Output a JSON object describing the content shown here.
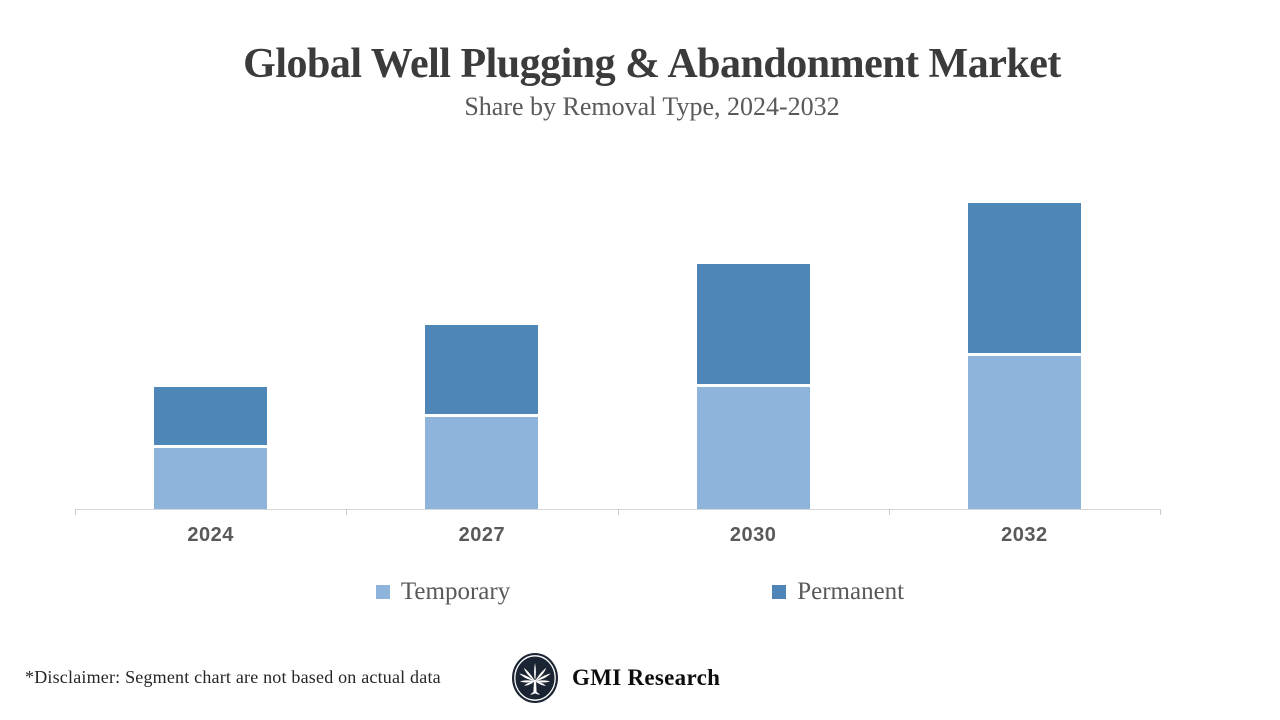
{
  "header": {
    "title": "Global Well Plugging & Abandonment Market",
    "subtitle": "Share by Removal Type, 2024-2032"
  },
  "chart_data": {
    "type": "bar",
    "stacked": true,
    "categories": [
      "2024",
      "2027",
      "2030",
      "2032"
    ],
    "series": [
      {
        "name": "Temporary",
        "color": "#8FB4DC",
        "values": [
          20,
          30,
          40,
          50
        ]
      },
      {
        "name": "Permanent",
        "color": "#4E86B8",
        "values": [
          20,
          30,
          40,
          50
        ]
      }
    ],
    "title": "Global Well Plugging & Abandonment Market",
    "subtitle": "Share by Removal Type, 2024-2032",
    "xlabel": "",
    "ylabel": "",
    "ylim": [
      0,
      100
    ],
    "y_axis_visible": false,
    "gridlines": false,
    "legend_position": "bottom",
    "segment_gap_color": "#FFFFFF"
  },
  "legend": {
    "items": [
      {
        "label": "Temporary",
        "color": "#8FB4DC"
      },
      {
        "label": "Permanent",
        "color": "#4E86B8"
      }
    ]
  },
  "footer": {
    "disclaimer": "*Disclaimer:  Segment chart are not based on actual data",
    "brand": "GMI Research",
    "logo": "gmi-fan-tree-logo",
    "logo_bg_color": "#1B2433"
  },
  "colors": {
    "title_text": "#3B3B3B",
    "muted_text": "#595959",
    "axis_line": "#D6D6D6",
    "temporary_blue": "#8FB4DC",
    "permanent_blue": "#4E86B8",
    "logo_navy": "#1B2433"
  }
}
